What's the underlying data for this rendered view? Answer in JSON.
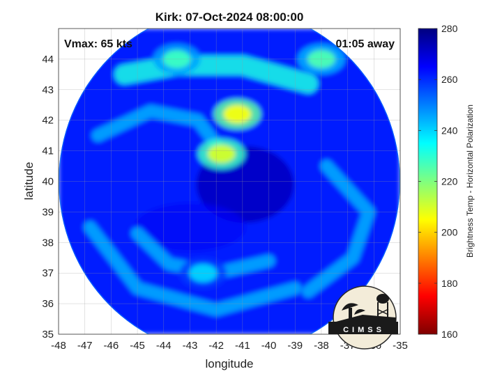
{
  "chart_data": {
    "type": "heatmap",
    "title": "Kirk: 07-Oct-2024 08:00:00",
    "xlabel": "longitude",
    "ylabel": "latitude",
    "xlim": [
      -48,
      -35
    ],
    "ylim": [
      35,
      45
    ],
    "xticks": [
      "-48",
      "-47",
      "-46",
      "-45",
      "-44",
      "-43",
      "-42",
      "-41",
      "-40",
      "-39",
      "-38",
      "-37",
      "-36",
      "-35"
    ],
    "yticks": [
      "35",
      "36",
      "37",
      "38",
      "39",
      "40",
      "41",
      "42",
      "43",
      "44"
    ],
    "grid": true,
    "colorbar": {
      "label": "Brightness Temp - Horizontal Polarization",
      "range": [
        160,
        280
      ],
      "ticks": [
        "160",
        "180",
        "200",
        "220",
        "240",
        "260",
        "280"
      ]
    },
    "annotations": {
      "vmax": "Vmax: 65 kts",
      "time_away": "01:05 away"
    },
    "field": {
      "center": [
        -41.5,
        40.0
      ],
      "radius_deg": 6.5,
      "eye": [
        -40.9,
        39.9
      ],
      "background_value": 262,
      "warm_core_value": 272,
      "cold_features": [
        {
          "name": "north band",
          "lon": -41.2,
          "lat": 42.2,
          "value": 206
        },
        {
          "name": "band tip",
          "lon": -41.8,
          "lat": 40.9,
          "value": 210
        },
        {
          "name": "north edge",
          "lon": -43.5,
          "lat": 44.0,
          "value": 228
        },
        {
          "name": "northeast edge",
          "lon": -38.0,
          "lat": 44.0,
          "value": 226
        },
        {
          "name": "south band",
          "lon": -42.5,
          "lat": 37.0,
          "value": 240
        }
      ]
    }
  },
  "logo": {
    "text": "CIMSS"
  },
  "colors": {
    "colormap": [
      "#7f0000",
      "#ff0000",
      "#ffff00",
      "#00ffff",
      "#0000ff",
      "#00007f"
    ]
  }
}
